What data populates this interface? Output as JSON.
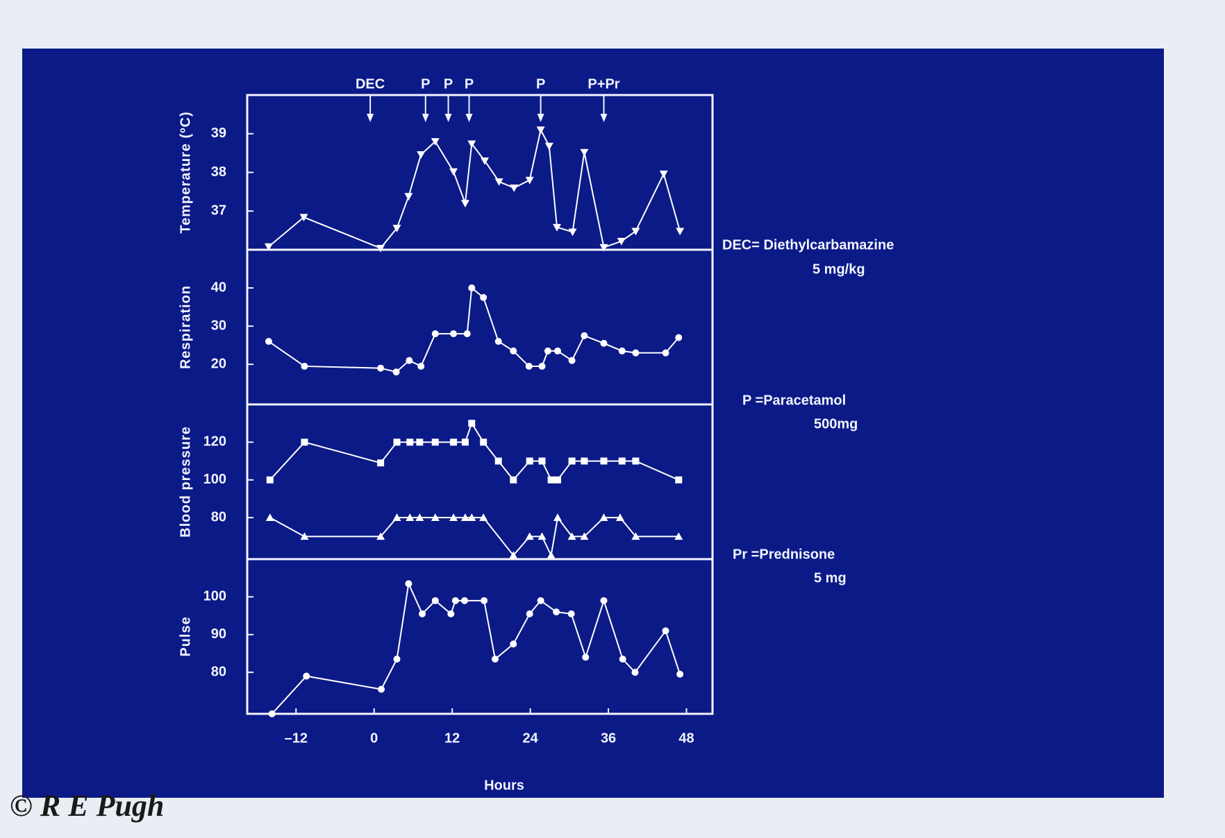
{
  "chart_data": [
    {
      "type": "line",
      "ylabel": "Temperature (ºC)",
      "ylim": [
        36,
        40
      ],
      "yticks": [
        37,
        38,
        39
      ],
      "xlim": [
        -19.5,
        52
      ],
      "annotations": [
        {
          "label": "DEC",
          "x": -0.6
        },
        {
          "label": "P",
          "x": 7.9
        },
        {
          "label": "P",
          "x": 11.4
        },
        {
          "label": "P",
          "x": 14.6
        },
        {
          "label": "P",
          "x": 25.6
        },
        {
          "label": "P+Pr",
          "x": 35.3
        }
      ],
      "series": [
        {
          "color": "#ffffff",
          "marker": "triangle-down",
          "x": [
            -16.2,
            -10.8,
            1,
            3.5,
            5.3,
            7.2,
            9.4,
            12.2,
            14,
            15,
            17,
            19.2,
            21.5,
            23.9,
            25.6,
            26.9,
            28.1,
            30.5,
            32.3,
            35.3,
            38,
            40.2,
            44.5,
            47
          ],
          "values": [
            36.08,
            36.84,
            36.04,
            36.56,
            37.38,
            38.46,
            38.8,
            38.02,
            37.2,
            38.74,
            38.3,
            37.76,
            37.6,
            37.8,
            39.1,
            38.68,
            36.58,
            36.46,
            38.52,
            36.06,
            36.22,
            36.48,
            37.96,
            36.48
          ]
        }
      ]
    },
    {
      "type": "line",
      "ylabel": "Respiration",
      "ylim": [
        9.5,
        50
      ],
      "yticks": [
        20,
        30,
        40
      ],
      "xlim": [
        -19.5,
        52
      ],
      "series": [
        {
          "color": "#ffffff",
          "marker": "circle",
          "x": [
            -16.2,
            -10.7,
            1,
            3.4,
            5.4,
            7.2,
            9.4,
            12.2,
            14.3,
            15,
            16.8,
            19.1,
            21.4,
            23.8,
            25.8,
            26.7,
            28.2,
            30.4,
            32.3,
            35.3,
            38.1,
            40.2,
            44.8,
            46.8
          ],
          "values": [
            26,
            19.5,
            19,
            18,
            21,
            19.5,
            28,
            28,
            28,
            40,
            37.5,
            26,
            23.5,
            19.5,
            19.5,
            23.5,
            23.5,
            21,
            27.5,
            25.5,
            23.5,
            23,
            23,
            27
          ]
        }
      ]
    },
    {
      "type": "line",
      "ylabel": "Blood pressure",
      "ylim": [
        58,
        140
      ],
      "yticks": [
        80,
        100,
        120
      ],
      "xlim": [
        -19.5,
        52
      ],
      "series": [
        {
          "color": "#ffffff",
          "marker": "square",
          "x": [
            -16,
            -10.7,
            1,
            3.5,
            5.5,
            7,
            9.4,
            12.2,
            14,
            15,
            16.8,
            19.1,
            21.4,
            23.9,
            25.8,
            27.2,
            28.2,
            30.4,
            32.3,
            35.3,
            38.1,
            40.2,
            46.8
          ],
          "values": [
            100,
            120,
            109,
            120,
            120,
            120,
            120,
            120,
            120,
            130,
            120,
            110,
            100,
            110,
            110,
            100,
            100,
            110,
            110,
            110,
            110,
            110,
            100
          ]
        },
        {
          "color": "#ffffff",
          "marker": "triangle",
          "x": [
            -16,
            -10.7,
            1,
            3.5,
            5.5,
            7,
            9.4,
            12.2,
            14,
            15,
            16.8,
            21.4,
            23.9,
            25.8,
            27.2,
            28.2,
            30.4,
            32.3,
            35.3,
            37.8,
            40.2,
            46.8
          ],
          "values": [
            80,
            70,
            70,
            80,
            80,
            80,
            80,
            80,
            80,
            80,
            80,
            60,
            70,
            70,
            60,
            80,
            70,
            70,
            80,
            80,
            70,
            70
          ]
        }
      ]
    },
    {
      "type": "line",
      "ylabel": "Pulse",
      "ylim": [
        69,
        110
      ],
      "yticks": [
        80,
        90,
        100
      ],
      "xlim": [
        -19.5,
        52
      ],
      "xlabel": "Hours",
      "xticks": [
        {
          "value": -12,
          "label": "–12"
        },
        0,
        12,
        24,
        36,
        48
      ],
      "series": [
        {
          "color": "#ffffff",
          "marker": "circle",
          "x": [
            -15.7,
            -10.4,
            1.1,
            3.5,
            5.3,
            7.4,
            9.4,
            11.8,
            12.5,
            13.9,
            16.9,
            18.6,
            21.4,
            23.9,
            25.6,
            28,
            30.3,
            32.5,
            35.3,
            38.2,
            40.1,
            44.8,
            47
          ],
          "values": [
            69,
            79,
            75.5,
            83.5,
            103.5,
            95.5,
            99,
            95.5,
            99,
            99,
            99,
            83.5,
            87.5,
            95.5,
            99,
            96,
            95.5,
            84,
            99,
            83.5,
            80,
            91,
            79.5
          ]
        }
      ]
    }
  ],
  "legend_notes": [
    "DEC= Diethylcarbamazine",
    "5 mg/kg",
    "P =Paracetamol",
    "500mg",
    "Pr =Prednisone",
    "5 mg"
  ],
  "credit": "© R E Pugh"
}
